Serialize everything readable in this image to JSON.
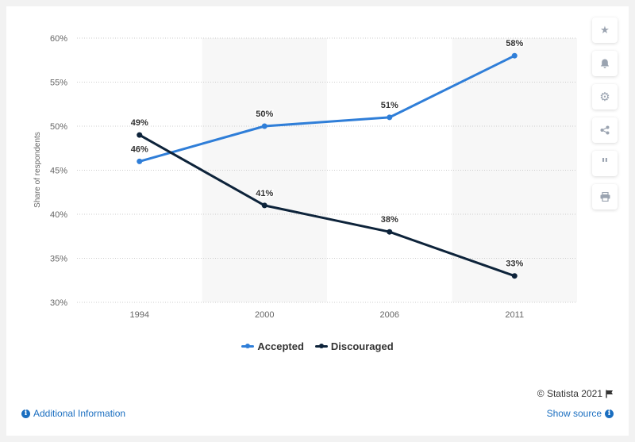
{
  "chart_data": {
    "type": "line",
    "categories": [
      "1994",
      "2000",
      "2006",
      "2011"
    ],
    "series": [
      {
        "name": "Accepted",
        "values": [
          46,
          50,
          51,
          58
        ],
        "color": "#2f7ed8",
        "labels": [
          "46%",
          "50%",
          "51%",
          "58%"
        ]
      },
      {
        "name": "Discouraged",
        "values": [
          49,
          41,
          38,
          33
        ],
        "color": "#0d233a",
        "labels": [
          "49%",
          "41%",
          "38%",
          "33%"
        ]
      }
    ],
    "ylabel": "Share of respondents",
    "ylim": [
      30,
      60
    ],
    "yticks": [
      30,
      35,
      40,
      45,
      50,
      55,
      60
    ],
    "ytick_labels": [
      "30%",
      "35%",
      "40%",
      "45%",
      "50%",
      "55%",
      "60%"
    ],
    "grid": true,
    "legend_position": "bottom-center"
  },
  "footer": {
    "credit": "© Statista 2021",
    "additional_info": "Additional Information",
    "show_source": "Show source"
  },
  "sidebar_icons": [
    "star-icon",
    "bell-icon",
    "gear-icon",
    "share-icon",
    "quote-icon",
    "print-icon"
  ]
}
